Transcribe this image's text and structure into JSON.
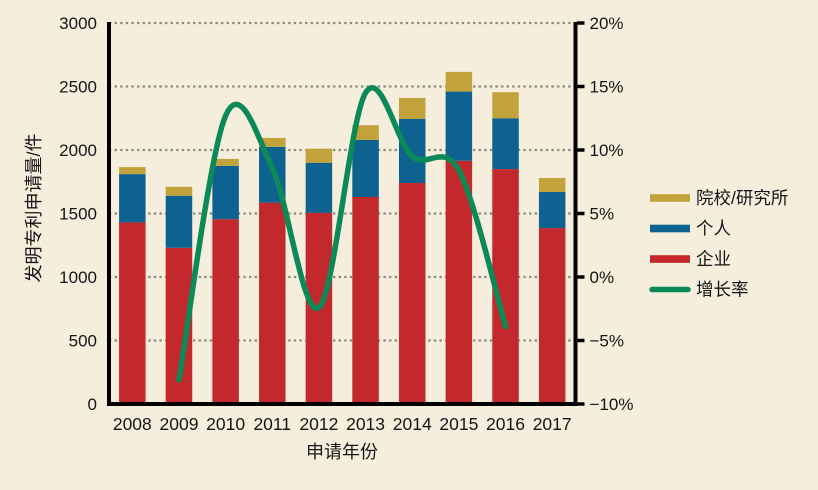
{
  "figure": {
    "background": "#F5EEDC",
    "text_color": "#151515",
    "axis_color": "#000000"
  },
  "chart_data": {
    "type": "bar+line",
    "stacked": true,
    "title": "",
    "categories": [
      "2008",
      "2009",
      "2010",
      "2011",
      "2012",
      "2013",
      "2014",
      "2015",
      "2016",
      "2017"
    ],
    "series": [
      {
        "name": "企业",
        "type": "bar",
        "color": "#C2282C",
        "values": [
          1430,
          1230,
          1455,
          1585,
          1505,
          1630,
          1740,
          1915,
          1850,
          1385
        ]
      },
      {
        "name": "个人",
        "type": "bar",
        "color": "#0E628F",
        "values": [
          380,
          410,
          420,
          440,
          395,
          450,
          505,
          545,
          400,
          285
        ]
      },
      {
        "name": "院校/研究所",
        "type": "bar",
        "color": "#C2A23A",
        "values": [
          55,
          70,
          55,
          70,
          110,
          115,
          165,
          155,
          205,
          110
        ]
      },
      {
        "name": "增长率",
        "type": "line",
        "color": "#0B8A58",
        "unit": "%",
        "axis": "right",
        "values": [
          null,
          -8.1,
          12.7,
          8.6,
          -2.4,
          14.5,
          9.5,
          8.4,
          -3.9,
          null
        ]
      }
    ],
    "left_axis": {
      "label": "发明专利申请量/件",
      "min": 0,
      "max": 3000,
      "step": 500,
      "tick_labels": [
        "0",
        "500",
        "1000",
        "1500",
        "2000",
        "2500",
        "3000"
      ]
    },
    "right_axis": {
      "min": -10,
      "max": 20,
      "step": 5,
      "tick_labels": [
        "−10%",
        "−5%",
        "0%",
        "5%",
        "10%",
        "15%",
        "20%"
      ]
    },
    "x_axis": {
      "label": "申请年份"
    },
    "legend": {
      "position": "right",
      "items": [
        {
          "label": "院校/研究所",
          "swatch": "rect",
          "color": "#C2A23A"
        },
        {
          "label": "个人",
          "swatch": "rect",
          "color": "#0E628F"
        },
        {
          "label": "企业",
          "swatch": "rect",
          "color": "#C2282C"
        },
        {
          "label": "增长率",
          "swatch": "line",
          "color": "#0B8A58"
        }
      ]
    },
    "grid": {
      "show": true,
      "color": "#8B8B84",
      "style": "dotted"
    }
  }
}
